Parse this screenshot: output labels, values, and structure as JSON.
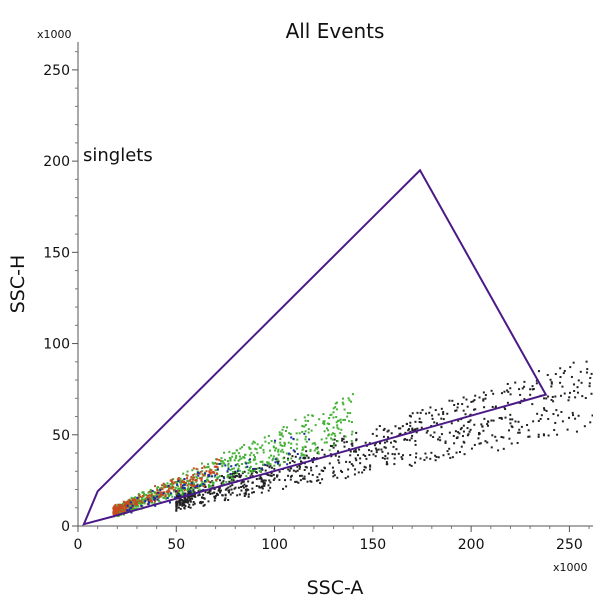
{
  "chart_data": {
    "type": "scatter",
    "title": "All Events",
    "xlabel": "SSC-A",
    "ylabel": "SSC-H",
    "x_multiplier": "x1000",
    "y_multiplier": "x1000",
    "xlim": [
      0,
      262
    ],
    "ylim": [
      0,
      262
    ],
    "x_ticks": [
      "0",
      "50",
      "100",
      "150",
      "200",
      "250"
    ],
    "y_ticks": [
      "0",
      "50",
      "100",
      "150",
      "200",
      "250"
    ],
    "x_tick_values": [
      0,
      50,
      100,
      150,
      200,
      250
    ],
    "y_tick_values": [
      0,
      50,
      100,
      150,
      200,
      250
    ],
    "grid": false,
    "gate": {
      "name": "singlets",
      "color": "#4b1a87",
      "vertices": [
        [
          3,
          1
        ],
        [
          10,
          19
        ],
        [
          174,
          195
        ],
        [
          238,
          72
        ],
        [
          17,
          5
        ]
      ]
    },
    "populations": [
      {
        "color": "#222222",
        "description": "black events",
        "x_range": [
          50,
          262
        ],
        "slope_range": [
          0.2,
          0.36
        ]
      },
      {
        "color": "#44b035",
        "description": "green events",
        "x_range": [
          20,
          140
        ],
        "slope_range": [
          0.33,
          0.52
        ]
      },
      {
        "color": "#c94a1f",
        "description": "red-orange events",
        "x_range": [
          18,
          72
        ],
        "slope_range": [
          0.36,
          0.52
        ]
      },
      {
        "color": "#1a2aa6",
        "description": "blue events",
        "x_range": [
          25,
          120
        ],
        "slope_range": [
          0.3,
          0.46
        ]
      }
    ]
  }
}
